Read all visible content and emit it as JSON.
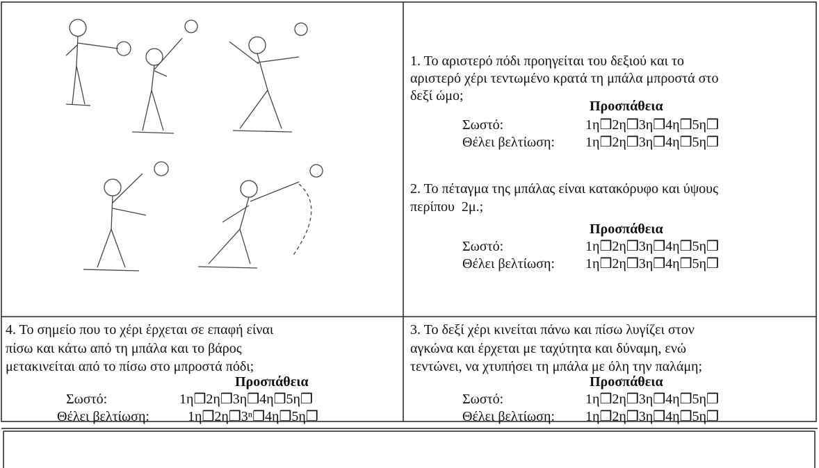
{
  "cells": {
    "item1": {
      "lines": [
        "1. Το αριστερό πόδι προηγείται του δεξιού και το",
        "αριστερό χέρι τεντωμένο κρατά τη μπάλα μπροστά στο",
        "δεξί ώμο;"
      ],
      "attempts_title": "Προσπάθεια",
      "correct_label": "Σωστό:",
      "correct_boxes": "1η❒2η❒3η❒4η❒5η❒",
      "improve_label": "Θέλει βελτίωση:",
      "improve_boxes": "1η❒2η❒3η❒4η❒5η❒"
    },
    "item2": {
      "lines": [
        "2. Το πέταγμα της μπάλας είναι κατακόρυφο και ύψους",
        "περίπου  2μ.;"
      ],
      "attempts_title": "Προσπάθεια",
      "correct_label": "Σωστό:",
      "correct_boxes": "1η❒2η❒3η❒4η❒5η❒",
      "improve_label": "Θέλει βελτίωση:",
      "improve_boxes": "1η❒2η❒3η❒4η❒5η❒"
    },
    "item4": {
      "lines": [
        "4. Το σημείο που το χέρι έρχεται σε επαφή είναι",
        "πίσω και κάτω από τη μπάλα και το βάρος",
        "μετακινείται από το πίσω στο μπροστά πόδι;"
      ],
      "attempts_title": "Προσπάθεια",
      "correct_label": "Σωστό:",
      "correct_boxes": "1η❒2η❒3η❒4η❒5η❒",
      "improve_label": "Θέλει βελτίωση:",
      "improve_boxes": "1η❒2η❒3ⁿ❒4η❒5η❒"
    },
    "item3": {
      "lines": [
        "3. Το δεξί χέρι κινείται πάνω και πίσω λυγίζει στον",
        "αγκώνα και έρχεται με ταχύτητα και δύναμη, ενώ",
        "τεντώνει, να χτυπήσει τη μπάλα με όλη την παλάμη;"
      ],
      "attempts_title": "Προσπάθεια",
      "correct_label": "Σωστό:",
      "correct_boxes": "1η❒2η❒3η❒4η❒5η❒",
      "improve_label": "Θέλει βελτίωση:",
      "improve_boxes": "1η❒2η❒3η❒4η❒5η❒"
    }
  }
}
